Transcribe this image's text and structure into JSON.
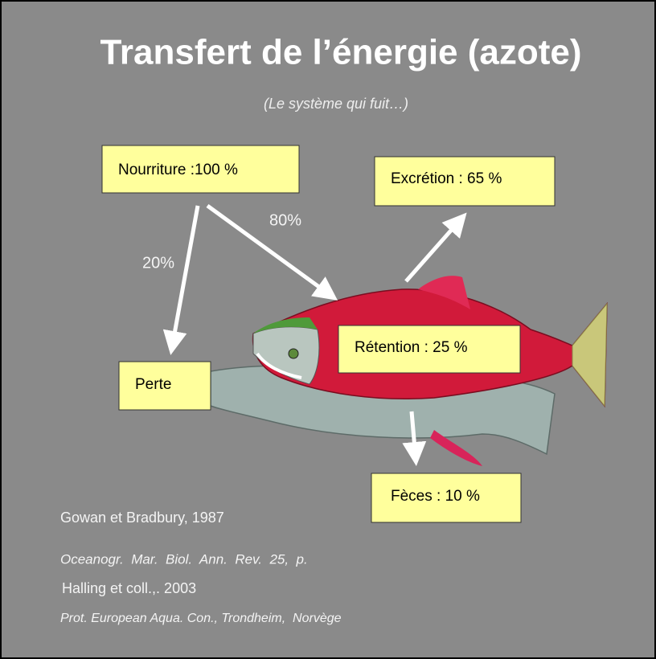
{
  "title": "Transfert de l’énergie (azote)",
  "subtitle": "(Le système qui fuit…)",
  "boxes": {
    "food": "Nourriture :100 %",
    "excretion": "Excrétion : 65 %",
    "retention": "Rétention : 25 %",
    "loss": "Perte",
    "feces": "Fèces : 10 %"
  },
  "arrow_labels": {
    "to_fish": "80%",
    "to_loss": "20%"
  },
  "references": [
    "Gowan et Bradbury, 1987",
    "Oceanogr.  Mar.  Biol.  Ann.  Rev.  25,  p.",
    "Halling et coll.,. 2003",
    "Prot. European Aqua. Con., Trondheim,  Norvège"
  ]
}
